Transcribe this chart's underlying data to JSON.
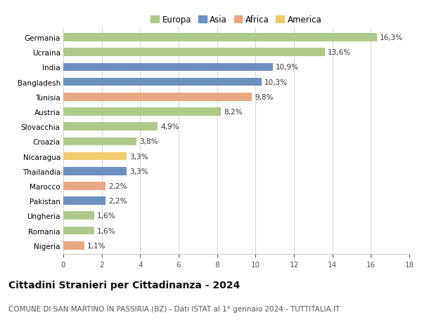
{
  "countries": [
    "Germania",
    "Ucraina",
    "India",
    "Bangladesh",
    "Tunisia",
    "Austria",
    "Slovacchia",
    "Croazia",
    "Nicaragua",
    "Thailandia",
    "Marocco",
    "Pakistan",
    "Ungheria",
    "Romania",
    "Nigeria"
  ],
  "values": [
    16.3,
    13.6,
    10.9,
    10.3,
    9.8,
    8.2,
    4.9,
    3.8,
    3.3,
    3.3,
    2.2,
    2.2,
    1.6,
    1.6,
    1.1
  ],
  "labels": [
    "16,3%",
    "13,6%",
    "10,9%",
    "10,3%",
    "9,8%",
    "8,2%",
    "4,9%",
    "3,8%",
    "3,3%",
    "3,3%",
    "2,2%",
    "2,2%",
    "1,6%",
    "1,6%",
    "1,1%"
  ],
  "continents": [
    "Europa",
    "Europa",
    "Asia",
    "Asia",
    "Africa",
    "Europa",
    "Europa",
    "Europa",
    "America",
    "Asia",
    "Africa",
    "Asia",
    "Europa",
    "Europa",
    "Africa"
  ],
  "continent_colors": {
    "Europa": "#aec98a",
    "Asia": "#6b8fbf",
    "Africa": "#e8a882",
    "America": "#f0cc6e"
  },
  "legend_order": [
    "Europa",
    "Asia",
    "Africa",
    "America"
  ],
  "xlim": [
    0,
    18
  ],
  "xticks": [
    0,
    2,
    4,
    6,
    8,
    10,
    12,
    14,
    16,
    18
  ],
  "title": "Cittadini Stranieri per Cittadinanza - 2024",
  "subtitle": "COMUNE DI SAN MARTINO IN PASSIRIA (BZ) - Dati ISTAT al 1° gennaio 2024 - TUTTITALIA.IT",
  "background_color": "#ffffff",
  "grid_color": "#cccccc",
  "bar_height": 0.55,
  "label_fontsize": 7.5,
  "title_fontsize": 10,
  "subtitle_fontsize": 7.5,
  "ytick_fontsize": 7.5,
  "xtick_fontsize": 7.5,
  "legend_fontsize": 8.5
}
